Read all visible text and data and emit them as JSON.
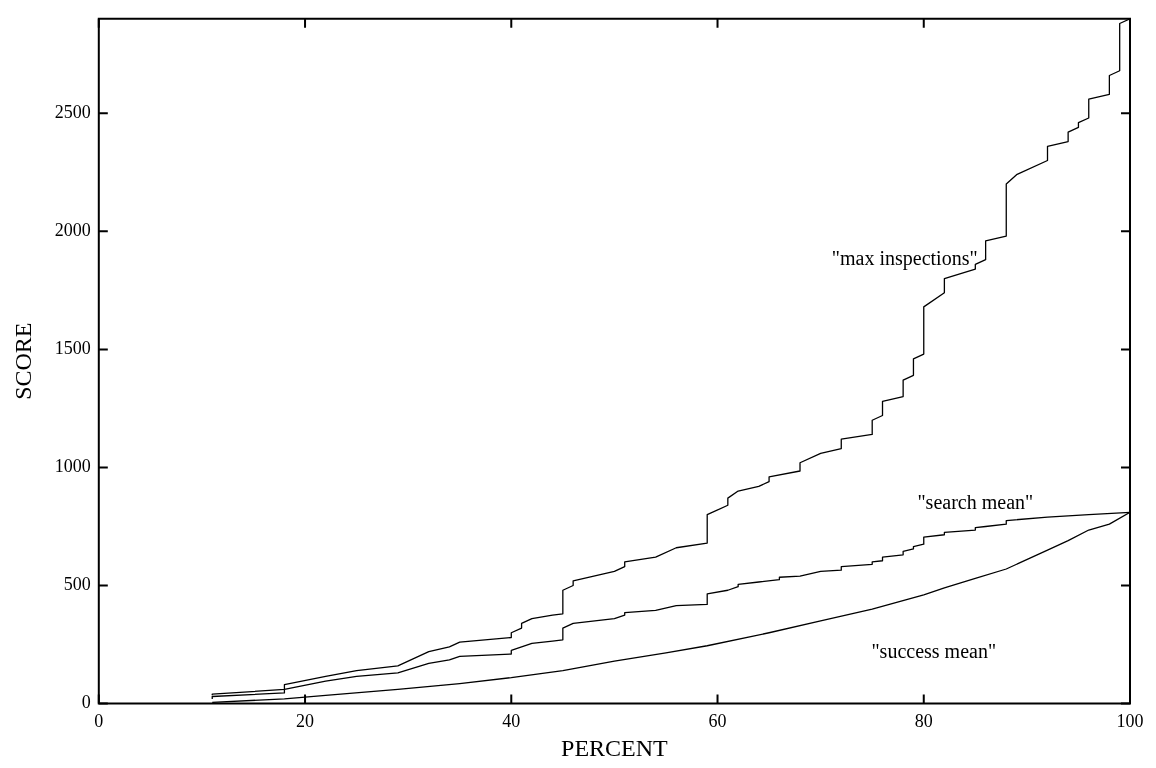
{
  "chart_data": {
    "type": "line",
    "xlabel": "PERCENT",
    "ylabel": "SCORE",
    "xlim": [
      0,
      100
    ],
    "xticks": [
      0,
      20,
      40,
      60,
      80,
      100
    ],
    "ylim": [
      0,
      2900
    ],
    "yticks": [
      0,
      500,
      1000,
      1500,
      2000,
      2500
    ],
    "grid": false,
    "legend": false,
    "marker": "none",
    "line_style": "solid",
    "series": [
      {
        "name": "\"max inspections\"",
        "color": "#000000",
        "x": [
          11,
          11,
          18,
          18,
          22,
          25,
          29,
          32,
          34,
          35,
          40,
          40,
          41,
          41,
          42,
          44,
          45,
          45,
          46,
          46,
          50,
          51,
          51,
          54,
          56,
          59,
          59,
          61,
          61,
          62,
          64,
          65,
          65,
          68,
          68,
          70,
          72,
          72,
          75,
          75,
          76,
          76,
          78,
          78,
          79,
          79,
          80,
          80,
          82,
          82,
          85,
          85,
          86,
          86,
          88,
          88,
          89,
          92,
          92,
          94,
          94,
          95,
          95,
          96,
          96,
          98,
          98,
          99,
          99,
          100
        ],
        "values": [
          35,
          40,
          60,
          80,
          115,
          140,
          160,
          220,
          240,
          260,
          280,
          300,
          320,
          340,
          360,
          375,
          380,
          480,
          500,
          520,
          560,
          580,
          600,
          620,
          660,
          680,
          800,
          840,
          870,
          900,
          920,
          940,
          960,
          985,
          1020,
          1060,
          1080,
          1120,
          1140,
          1200,
          1220,
          1280,
          1300,
          1370,
          1390,
          1460,
          1480,
          1680,
          1740,
          1800,
          1840,
          1860,
          1880,
          1960,
          1980,
          2200,
          2240,
          2300,
          2360,
          2380,
          2420,
          2440,
          2460,
          2480,
          2560,
          2580,
          2660,
          2680,
          2880,
          2900
        ]
      },
      {
        "name": "\"search mean\"",
        "color": "#000000",
        "x": [
          11,
          11,
          18,
          18,
          22,
          25,
          29,
          32,
          34,
          35,
          40,
          40,
          41,
          42,
          44,
          45,
          45,
          46,
          50,
          51,
          51,
          54,
          56,
          59,
          59,
          61,
          62,
          62,
          64,
          66,
          66,
          68,
          70,
          72,
          72,
          75,
          75,
          76,
          76,
          78,
          78,
          79,
          79,
          80,
          80,
          82,
          82,
          85,
          85,
          86,
          88,
          88,
          92,
          96,
          100
        ],
        "values": [
          20,
          30,
          45,
          60,
          95,
          115,
          130,
          170,
          185,
          200,
          210,
          225,
          240,
          255,
          265,
          270,
          320,
          340,
          360,
          375,
          385,
          395,
          415,
          420,
          465,
          480,
          495,
          505,
          515,
          525,
          535,
          540,
          560,
          565,
          580,
          590,
          600,
          605,
          620,
          630,
          645,
          655,
          665,
          675,
          705,
          715,
          725,
          735,
          745,
          750,
          760,
          775,
          790,
          800,
          810
        ]
      },
      {
        "name": "\"success mean\"",
        "color": "#000000",
        "x": [
          11,
          18,
          22,
          29,
          35,
          40,
          45,
          50,
          55,
          59,
          65,
          70,
          75,
          80,
          82,
          85,
          88,
          92,
          94,
          96,
          98,
          100
        ],
        "values": [
          5,
          20,
          35,
          60,
          85,
          110,
          140,
          180,
          215,
          245,
          300,
          350,
          400,
          460,
          490,
          530,
          570,
          650,
          690,
          735,
          760,
          810
        ]
      }
    ]
  }
}
